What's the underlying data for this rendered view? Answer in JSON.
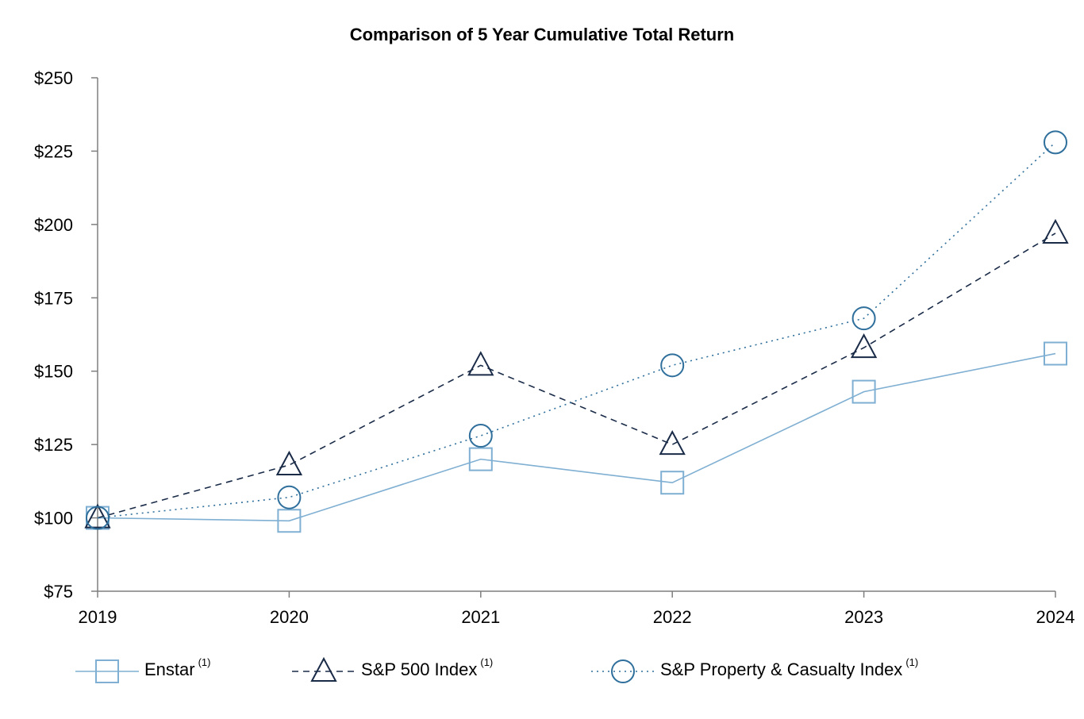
{
  "chart_data": {
    "type": "line",
    "title": "Comparison of 5 Year Cumulative Total Return",
    "xlabel": "",
    "ylabel": "",
    "categories": [
      "2019",
      "2020",
      "2021",
      "2022",
      "2023",
      "2024"
    ],
    "ylim": [
      75,
      250
    ],
    "yticks": [
      75,
      100,
      125,
      150,
      175,
      200,
      225,
      250
    ],
    "ytick_labels": [
      "$75",
      "$100",
      "$125",
      "$150",
      "$175",
      "$200",
      "$225",
      "$250"
    ],
    "grid": false,
    "legend_position": "bottom",
    "series": [
      {
        "name": "Enstar",
        "footnote": "(1)",
        "values": [
          100,
          99,
          120,
          112,
          143,
          156
        ],
        "color": "#7fafd2",
        "line_style": "solid",
        "marker": "square"
      },
      {
        "name": "S&P 500 Index",
        "footnote": "(1)",
        "values": [
          100,
          118,
          152,
          125,
          158,
          197
        ],
        "color": "#1a2b48",
        "line_style": "dashed",
        "marker": "triangle"
      },
      {
        "name": "S&P Property & Casualty Index",
        "footnote": "(1)",
        "values": [
          100,
          107,
          128,
          152,
          168,
          228
        ],
        "color": "#2f6f9c",
        "line_style": "dotted",
        "marker": "circle"
      }
    ]
  }
}
